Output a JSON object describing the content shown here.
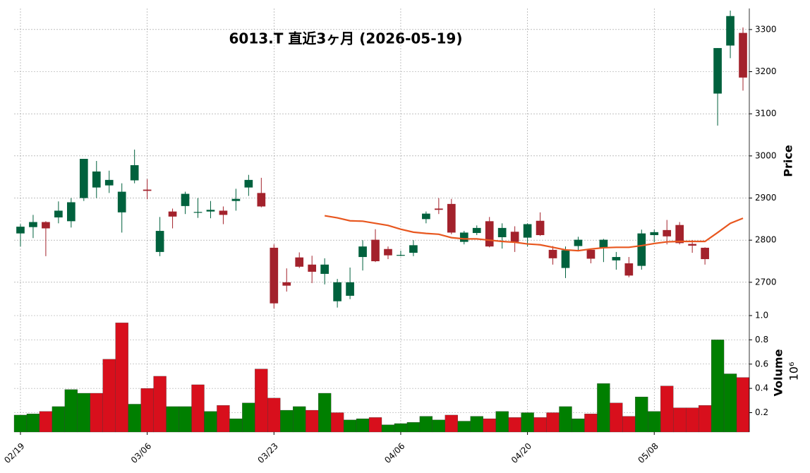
{
  "chart_data": [
    {
      "type": "candlestick",
      "title": "6013.T  直近3ヶ月  (2026-05-19)",
      "y_label": "Price",
      "categories": [
        "02/19",
        null,
        null,
        null,
        null,
        null,
        null,
        null,
        null,
        null,
        "03/06",
        null,
        null,
        null,
        null,
        null,
        null,
        null,
        null,
        null,
        "03/23",
        null,
        null,
        null,
        null,
        null,
        null,
        null,
        null,
        null,
        "04/06",
        null,
        null,
        null,
        null,
        null,
        null,
        null,
        null,
        null,
        "04/20",
        null,
        null,
        null,
        null,
        null,
        null,
        null,
        null,
        null,
        "05/08",
        null,
        null,
        null,
        null,
        null,
        null,
        null
      ],
      "open": [
        2816,
        2831,
        2843,
        2854,
        2845,
        2900,
        2925,
        2930,
        2866,
        2942,
        2920,
        2772,
        2868,
        2881,
        2865,
        2868,
        2870,
        2893,
        2925,
        2912,
        2782,
        2700,
        2759,
        2742,
        2720,
        2655,
        2668,
        2760,
        2801,
        2779,
        2763,
        2770,
        2850,
        2875,
        2886,
        2796,
        2817,
        2845,
        2807,
        2820,
        2806,
        2846,
        2777,
        2734,
        2786,
        2777,
        2782,
        2752,
        2745,
        2739,
        2812,
        2824,
        2836,
        2791,
        2782,
        3148,
        3262,
        3292
      ],
      "high": [
        2838,
        2860,
        2845,
        2892,
        2900,
        2993,
        2988,
        2965,
        2935,
        3015,
        2945,
        2855,
        2875,
        2915,
        2900,
        2893,
        2880,
        2922,
        2955,
        2948,
        2790,
        2733,
        2771,
        2763,
        2757,
        2708,
        2735,
        2800,
        2826,
        2785,
        2775,
        2800,
        2868,
        2900,
        2898,
        2822,
        2835,
        2855,
        2840,
        2833,
        2840,
        2866,
        2786,
        2785,
        2808,
        2779,
        2803,
        2772,
        2760,
        2825,
        2825,
        2848,
        2843,
        2800,
        2783,
        3256,
        3345,
        3305
      ],
      "low": [
        2785,
        2805,
        2762,
        2840,
        2830,
        2893,
        2900,
        2912,
        2818,
        2935,
        2897,
        2762,
        2828,
        2862,
        2853,
        2852,
        2838,
        2870,
        2905,
        2878,
        2638,
        2678,
        2734,
        2698,
        2695,
        2640,
        2660,
        2728,
        2748,
        2755,
        2762,
        2762,
        2840,
        2862,
        2814,
        2790,
        2812,
        2783,
        2780,
        2772,
        2785,
        2810,
        2742,
        2710,
        2776,
        2745,
        2748,
        2730,
        2712,
        2730,
        2795,
        2790,
        2790,
        2770,
        2742,
        3072,
        3232,
        3155
      ],
      "close": [
        2832,
        2843,
        2828,
        2870,
        2890,
        2993,
        2963,
        2943,
        2915,
        2978,
        2917,
        2822,
        2856,
        2910,
        2867,
        2872,
        2860,
        2898,
        2943,
        2880,
        2650,
        2692,
        2737,
        2725,
        2742,
        2700,
        2700,
        2785,
        2750,
        2764,
        2765,
        2788,
        2863,
        2872,
        2818,
        2818,
        2829,
        2785,
        2829,
        2796,
        2838,
        2812,
        2757,
        2776,
        2801,
        2756,
        2801,
        2760,
        2716,
        2816,
        2819,
        2809,
        2793,
        2787,
        2755,
        3256,
        3332,
        3186
      ],
      "up_color": "#00613d",
      "down_color": "#a3222c",
      "moving_average": {
        "color": "#e8571f",
        "values": [
          null,
          null,
          null,
          null,
          null,
          null,
          null,
          null,
          null,
          null,
          null,
          null,
          null,
          null,
          null,
          null,
          null,
          null,
          null,
          null,
          null,
          null,
          null,
          null,
          2858,
          2853,
          2846,
          2845,
          2840,
          2835,
          2826,
          2819,
          2816,
          2814,
          2806,
          2803,
          2803,
          2800,
          2797,
          2795,
          2791,
          2789,
          2783,
          2777,
          2775,
          2779,
          2782,
          2783,
          2783,
          2787,
          2792,
          2796,
          2797,
          2797,
          2797,
          2818,
          2840,
          2852
        ]
      },
      "ylim": [
        2621,
        3350
      ],
      "yticks": [
        2700,
        2800,
        2900,
        3000,
        3100,
        3200,
        3300
      ],
      "grid": true
    },
    {
      "type": "bar",
      "y_label": "Volume",
      "scale_label": "10⁶",
      "values": [
        0.18,
        0.19,
        0.21,
        0.25,
        0.39,
        0.36,
        0.36,
        0.64,
        0.94,
        0.27,
        0.4,
        0.5,
        0.25,
        0.25,
        0.43,
        0.21,
        0.26,
        0.15,
        0.28,
        0.56,
        0.32,
        0.22,
        0.25,
        0.22,
        0.36,
        0.2,
        0.14,
        0.15,
        0.16,
        0.1,
        0.11,
        0.12,
        0.17,
        0.14,
        0.18,
        0.13,
        0.17,
        0.15,
        0.21,
        0.16,
        0.2,
        0.16,
        0.2,
        0.25,
        0.15,
        0.19,
        0.44,
        0.28,
        0.17,
        0.33,
        0.21,
        0.42,
        0.24,
        0.24,
        0.26,
        0.8,
        0.52,
        0.49
      ],
      "up_color": "#007f00",
      "down_color": "#d80f1c",
      "ylim": [
        0.04,
        1.0
      ],
      "yticks": [
        0.2,
        0.4,
        0.6,
        0.8,
        {
          "value": 1,
          "label": "1.0"
        }
      ],
      "grid": true
    }
  ]
}
